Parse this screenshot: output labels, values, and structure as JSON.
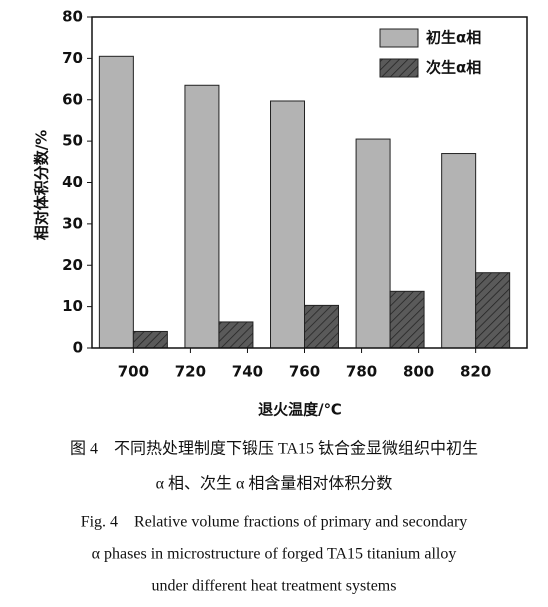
{
  "chart_data": {
    "type": "bar",
    "x": [
      700,
      730,
      760,
      790,
      820
    ],
    "series": [
      {
        "name": "初生α相",
        "color": "#b3b3b3",
        "hatch": false,
        "values": [
          70.5,
          63.5,
          59.7,
          50.5,
          47
        ]
      },
      {
        "name": "次生α相",
        "color": "#4d4d4d",
        "hatch": true,
        "values": [
          4,
          6.3,
          10.3,
          13.7,
          18.2
        ]
      }
    ],
    "xlabel": "退火温度/℃",
    "ylabel": "相对体积分数/%",
    "xlim": [
      685.5,
      838
    ],
    "xticks": [
      700,
      720,
      740,
      760,
      780,
      800,
      820
    ],
    "ylim": [
      0,
      80
    ],
    "yticks": [
      0,
      10,
      20,
      30,
      40,
      50,
      60,
      70,
      80
    ],
    "legend": "upper right"
  },
  "caption": [
    "图 4　不同热处理制度下锻压 TA15 钛合金显微组织中初生",
    "α 相、次生 α 相含量相对体积分数",
    "Fig. 4　Relative volume fractions of primary and secondary",
    "α phases in microstructure of forged TA15 titanium alloy",
    "under different heat treatment systems"
  ]
}
